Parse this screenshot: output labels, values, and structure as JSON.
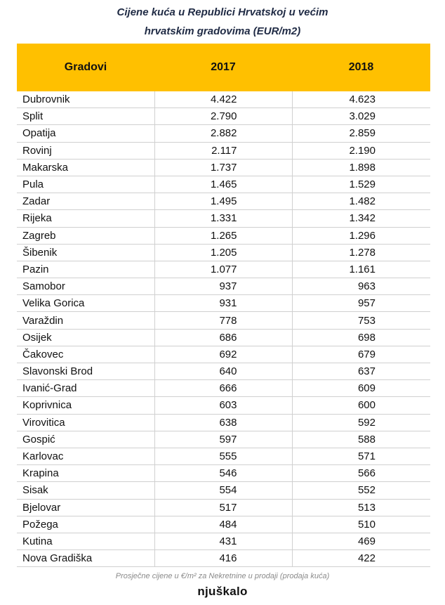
{
  "header": {
    "title_line1": "Cijene kuća u Republici Hrvatskoj u većim",
    "title_line2": "hrvatskim gradovima (EUR/m2)"
  },
  "table": {
    "columns": [
      "Gradovi",
      "2017",
      "2018"
    ],
    "rows": [
      [
        "Dubrovnik",
        "4.422",
        "4.623"
      ],
      [
        "Split",
        "2.790",
        "3.029"
      ],
      [
        "Opatija",
        "2.882",
        "2.859"
      ],
      [
        "Rovinj",
        "2.117",
        "2.190"
      ],
      [
        "Makarska",
        "1.737",
        "1.898"
      ],
      [
        "Pula",
        "1.465",
        "1.529"
      ],
      [
        "Zadar",
        "1.495",
        "1.482"
      ],
      [
        "Rijeka",
        "1.331",
        "1.342"
      ],
      [
        "Zagreb",
        "1.265",
        "1.296"
      ],
      [
        "Šibenik",
        "1.205",
        "1.278"
      ],
      [
        "Pazin",
        "1.077",
        "1.161"
      ],
      [
        "Samobor",
        "937",
        "963"
      ],
      [
        "Velika Gorica",
        "931",
        "957"
      ],
      [
        "Varaždin",
        "778",
        "753"
      ],
      [
        "Osijek",
        "686",
        "698"
      ],
      [
        "Čakovec",
        "692",
        "679"
      ],
      [
        "Slavonski Brod",
        "640",
        "637"
      ],
      [
        "Ivanić-Grad",
        "666",
        "609"
      ],
      [
        "Koprivnica",
        "603",
        "600"
      ],
      [
        "Virovitica",
        "638",
        "592"
      ],
      [
        "Gospić",
        "597",
        "588"
      ],
      [
        "Karlovac",
        "555",
        "571"
      ],
      [
        "Krapina",
        "546",
        "566"
      ],
      [
        "Sisak",
        "554",
        "552"
      ],
      [
        "Bjelovar",
        "517",
        "513"
      ],
      [
        "Požega",
        "484",
        "510"
      ],
      [
        "Kutina",
        "431",
        "469"
      ],
      [
        "Nova Gradiška",
        "416",
        "422"
      ]
    ]
  },
  "footer": {
    "note": "Prosječne cijene u €/m² za Nekretnine u prodaji (prodaja kuća)",
    "logo": "njuškalo"
  }
}
